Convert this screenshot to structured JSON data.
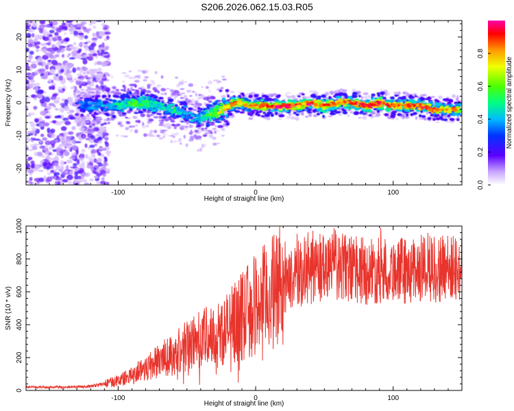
{
  "title": "S206.2026.062.15.03.R05",
  "colors": {
    "snr_line": "#e8342c",
    "axis": "#000000"
  },
  "chart_data": [
    {
      "type": "heatmap",
      "name": "spectrogram",
      "xlabel": "Height of straight line (km)",
      "ylabel": "Frequency (Hz)",
      "xlim": [
        -167,
        150
      ],
      "ylim": [
        -25,
        25
      ],
      "x_ticks": [
        -100,
        0,
        100
      ],
      "y_ticks": [
        -20,
        -10,
        0,
        10,
        20
      ],
      "colorbar": {
        "label": "Normalized spectral amplitude",
        "range": [
          0,
          1
        ],
        "ticks": [
          "0.0",
          "0.2",
          "0.4",
          "0.6",
          "0.8"
        ],
        "tick_values": [
          0.0,
          0.2,
          0.4,
          0.6,
          0.8
        ]
      },
      "ridge": {
        "x": [
          -167,
          -140,
          -120,
          -100,
          -90,
          -80,
          -70,
          -60,
          -50,
          -45,
          -40,
          -35,
          -30,
          -25,
          -20,
          -15,
          -10,
          -5,
          0,
          10,
          20,
          30,
          40,
          50,
          60,
          70,
          80,
          90,
          100,
          110,
          120,
          130,
          140,
          150
        ],
        "freq": [
          0,
          0,
          -1,
          -1,
          0,
          0,
          -1,
          -2,
          -3,
          -5,
          -5,
          -4,
          -3,
          -2,
          -1,
          0,
          0,
          -1,
          -1,
          -1,
          -1,
          -1,
          0,
          -1,
          0,
          0,
          -1,
          0,
          -1,
          -1,
          -1,
          -2,
          -2,
          -2
        ],
        "amplitude": [
          0.2,
          0.25,
          0.35,
          0.45,
          0.55,
          0.5,
          0.45,
          0.5,
          0.4,
          0.4,
          0.45,
          0.55,
          0.6,
          0.7,
          0.8,
          0.85,
          0.8,
          0.75,
          0.8,
          0.85,
          0.9,
          0.85,
          0.9,
          0.9,
          0.85,
          0.9,
          0.88,
          0.9,
          0.85,
          0.88,
          0.9,
          0.85,
          0.8,
          0.75
        ]
      }
    },
    {
      "type": "line",
      "name": "snr",
      "xlabel": "Height of straight line (km)",
      "ylabel": "SNR (10 * v/v)",
      "xlim": [
        -167,
        150
      ],
      "ylim": [
        0,
        1000
      ],
      "x_ticks": [
        -100,
        0,
        100
      ],
      "y_ticks": [
        0,
        200,
        400,
        600,
        800,
        1000
      ],
      "envelope": {
        "x": [
          -167,
          -140,
          -120,
          -110,
          -100,
          -90,
          -80,
          -70,
          -60,
          -50,
          -40,
          -30,
          -20,
          -10,
          0,
          10,
          20,
          30,
          40,
          50,
          60,
          70,
          80,
          90,
          100,
          110,
          120,
          130,
          140,
          150
        ],
        "snr": [
          20,
          20,
          25,
          40,
          60,
          90,
          140,
          180,
          220,
          270,
          320,
          330,
          380,
          450,
          520,
          580,
          640,
          700,
          720,
          740,
          750,
          740,
          720,
          730,
          740,
          720,
          740,
          740,
          740,
          740
        ]
      }
    }
  ]
}
